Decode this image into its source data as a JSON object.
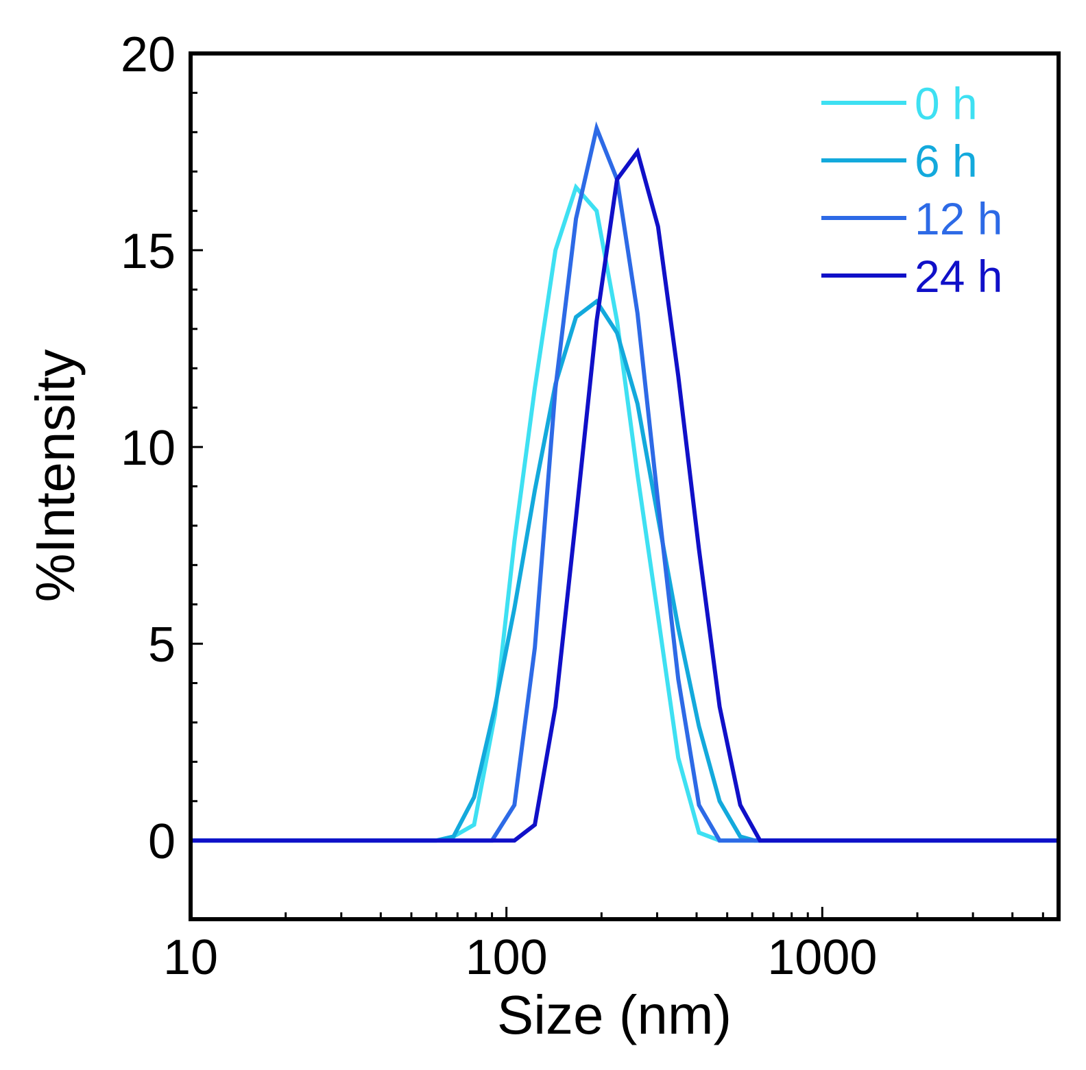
{
  "chart_data": {
    "type": "line",
    "title": "",
    "xlabel": "Size (nm)",
    "ylabel": "%Intensity",
    "xscale": "log",
    "xlim": [
      10,
      5600
    ],
    "ylim": [
      -2,
      20
    ],
    "xticks": [
      10,
      100,
      1000
    ],
    "xtick_labels": [
      "10",
      "100",
      "1000"
    ],
    "yticks": [
      0,
      5,
      10,
      15,
      20
    ],
    "ytick_labels": [
      "0",
      "5",
      "10",
      "15",
      "20"
    ],
    "grid": false,
    "legend_position": "top-right",
    "series": [
      {
        "name": "0 h",
        "color": "#3ee0f2",
        "points": [
          [
            10,
            0
          ],
          [
            60,
            0
          ],
          [
            68,
            0.1
          ],
          [
            79,
            0.4
          ],
          [
            92,
            3.2
          ],
          [
            106,
            7.6
          ],
          [
            123,
            11.5
          ],
          [
            143,
            15
          ],
          [
            166,
            16.6
          ],
          [
            193,
            16
          ],
          [
            224,
            13.2
          ],
          [
            260,
            9.3
          ],
          [
            302,
            5.7
          ],
          [
            350,
            2.1
          ],
          [
            407,
            0.2
          ],
          [
            473,
            0
          ],
          [
            5600,
            0
          ]
        ]
      },
      {
        "name": "6 h",
        "color": "#13a9dc",
        "points": [
          [
            10,
            0
          ],
          [
            60,
            0
          ],
          [
            68,
            0.1
          ],
          [
            79,
            1.1
          ],
          [
            92,
            3.4
          ],
          [
            106,
            5.9
          ],
          [
            123,
            8.9
          ],
          [
            143,
            11.6
          ],
          [
            166,
            13.3
          ],
          [
            193,
            13.7
          ],
          [
            224,
            12.9
          ],
          [
            260,
            11.1
          ],
          [
            302,
            8.2
          ],
          [
            350,
            5.4
          ],
          [
            407,
            2.9
          ],
          [
            473,
            1
          ],
          [
            550,
            0.1
          ],
          [
            610,
            0
          ],
          [
            5600,
            0
          ]
        ]
      },
      {
        "name": "12 h",
        "color": "#2d6ae6",
        "points": [
          [
            10,
            0
          ],
          [
            90,
            0
          ],
          [
            106,
            0.9
          ],
          [
            123,
            4.9
          ],
          [
            143,
            11.5
          ],
          [
            166,
            15.8
          ],
          [
            193,
            18.1
          ],
          [
            224,
            16.8
          ],
          [
            260,
            13.4
          ],
          [
            302,
            8.6
          ],
          [
            350,
            4.1
          ],
          [
            407,
            0.9
          ],
          [
            473,
            0
          ],
          [
            5600,
            0
          ]
        ]
      },
      {
        "name": "24 h",
        "color": "#1010c8",
        "points": [
          [
            10,
            0
          ],
          [
            106,
            0
          ],
          [
            123,
            0.4
          ],
          [
            143,
            3.4
          ],
          [
            166,
            8.2
          ],
          [
            193,
            13.2
          ],
          [
            224,
            16.8
          ],
          [
            260,
            17.5
          ],
          [
            302,
            15.6
          ],
          [
            350,
            11.8
          ],
          [
            407,
            7.4
          ],
          [
            473,
            3.4
          ],
          [
            550,
            0.9
          ],
          [
            635,
            0
          ],
          [
            5600,
            0
          ]
        ]
      }
    ]
  }
}
